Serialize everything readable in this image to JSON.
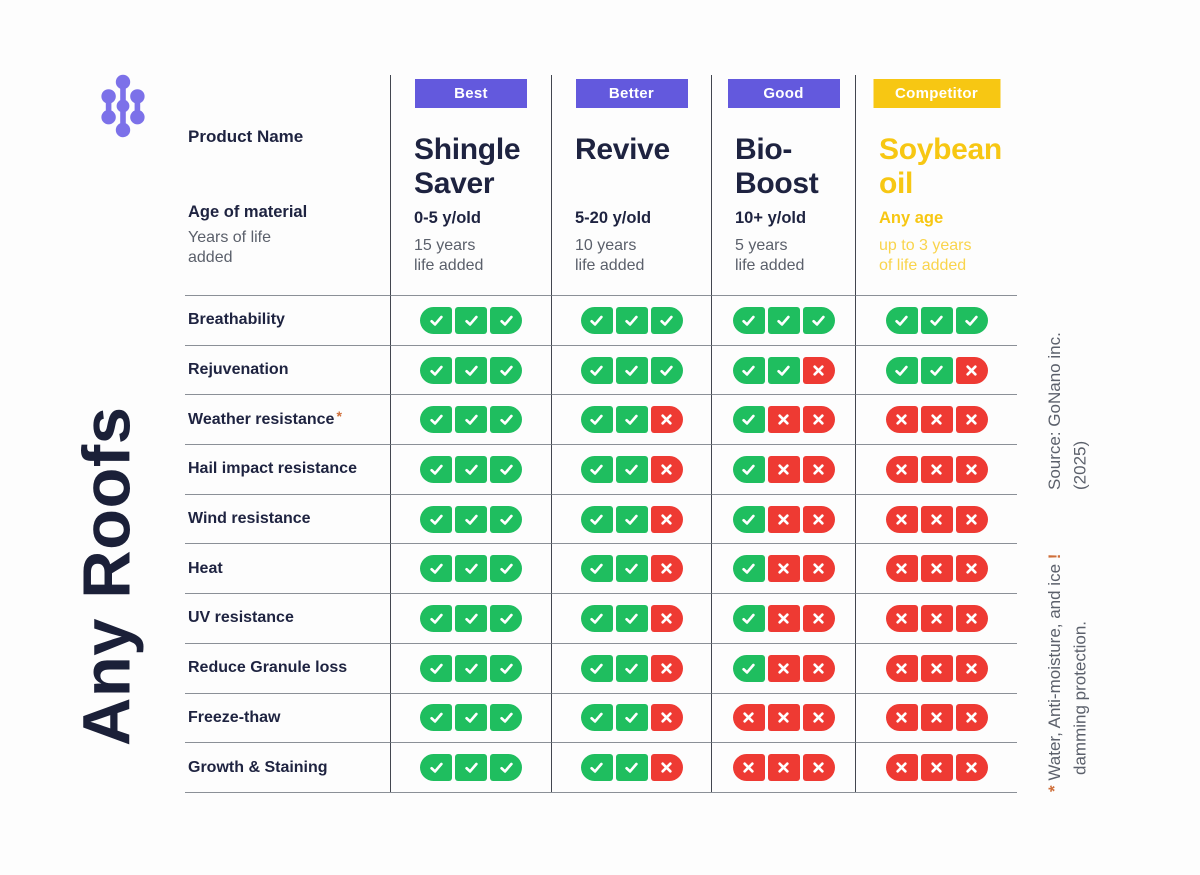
{
  "brand": {
    "vertical_title": "Any Roofs",
    "logo": "molecule-icon"
  },
  "header": {
    "product_name_label": "Product Name",
    "age_label": "Age of material",
    "years_label": "Years of life\nadded"
  },
  "columns": [
    {
      "id": "shingle-saver",
      "badge": "Best",
      "name": "Shingle\nSaver",
      "age": "0-5 y/old",
      "life": "15 years\nlife added",
      "theme": "default"
    },
    {
      "id": "revive",
      "badge": "Better",
      "name": "Revive",
      "age": "5-20 y/old",
      "life": "10 years\nlife added",
      "theme": "default"
    },
    {
      "id": "bio-boost",
      "badge": "Good",
      "name": "Bio-\nBoost",
      "age": "10+ y/old",
      "life": "5 years\nlife added",
      "theme": "default"
    },
    {
      "id": "soybean-oil",
      "badge": "Competitor",
      "name": "Soybean\noil",
      "age": "Any age",
      "life": "up to 3 years\nof life added",
      "theme": "competitor"
    }
  ],
  "rows": [
    {
      "label": "Breathability",
      "asterisk": false,
      "marks": [
        "CCC",
        "CCC",
        "CCC",
        "CCC"
      ]
    },
    {
      "label": "Rejuvenation",
      "asterisk": false,
      "marks": [
        "CCC",
        "CCC",
        "CCX",
        "CCX"
      ]
    },
    {
      "label": "Weather resistance",
      "asterisk": true,
      "marks": [
        "CCC",
        "CCX",
        "CXX",
        "XXX"
      ]
    },
    {
      "label": "Hail impact resistance",
      "asterisk": false,
      "marks": [
        "CCC",
        "CCX",
        "CXX",
        "XXX"
      ]
    },
    {
      "label": "Wind resistance",
      "asterisk": false,
      "marks": [
        "CCC",
        "CCX",
        "CXX",
        "XXX"
      ]
    },
    {
      "label": "Heat",
      "asterisk": false,
      "marks": [
        "CCC",
        "CCX",
        "CXX",
        "XXX"
      ]
    },
    {
      "label": "UV resistance",
      "asterisk": false,
      "marks": [
        "CCC",
        "CCX",
        "CXX",
        "XXX"
      ]
    },
    {
      "label": "Reduce Granule loss",
      "asterisk": false,
      "marks": [
        "CCC",
        "CCX",
        "CXX",
        "XXX"
      ]
    },
    {
      "label": "Freeze-thaw",
      "asterisk": false,
      "marks": [
        "CCC",
        "CCX",
        "XXX",
        "XXX"
      ]
    },
    {
      "label": "Growth & Staining",
      "asterisk": false,
      "marks": [
        "CCC",
        "CCX",
        "XXX",
        "XXX"
      ]
    }
  ],
  "footnote": {
    "star": "*",
    "line1": "Water, Anti-moisture, and ice",
    "bang": "!",
    "line2": "damming protection."
  },
  "source": "Source: GoNano inc.\n(2025)",
  "colors": {
    "navy": "#1E2340",
    "title_navy": "#1B2038",
    "purple": "#6359DD",
    "logo_purple": "#7C71E9",
    "yellow": "#F7C713",
    "yellow_light": "#F9D44C",
    "green": "#1FBE5F",
    "red": "#EE3A33",
    "gray_text": "#5B606B",
    "line_gray": "#8B9097",
    "line_dark": "#42464F",
    "orange": "#CF6F3A",
    "background": "#FDFDFD"
  },
  "chart_data": {
    "type": "table",
    "title": "Any Roofs — roof treatment product comparison",
    "legend": {
      "check": "pass",
      "x": "fail",
      "cell_scale": "3 segments per cell"
    },
    "columns": [
      "Shingle Saver",
      "Revive",
      "Bio-Boost",
      "Soybean oil"
    ],
    "column_tiers": [
      "Best",
      "Better",
      "Good",
      "Competitor"
    ],
    "column_age_of_material": [
      "0-5 y/old",
      "5-20 y/old",
      "10+ y/old",
      "Any age"
    ],
    "column_years_life_added": [
      "15 years life added",
      "10 years life added",
      "5 years life added",
      "up to 3 years of life added"
    ],
    "rows": [
      "Breathability",
      "Rejuvenation",
      "Weather resistance",
      "Hail impact resistance",
      "Wind resistance",
      "Heat",
      "UV resistance",
      "Reduce Granule loss",
      "Freeze-thaw",
      "Growth & Staining"
    ],
    "values": [
      [
        "✓✓✓",
        "✓✓✓",
        "✓✓✓",
        "✓✓✓"
      ],
      [
        "✓✓✓",
        "✓✓✓",
        "✓✓✗",
        "✓✓✗"
      ],
      [
        "✓✓✓",
        "✓✓✗",
        "✓✗✗",
        "✗✗✗"
      ],
      [
        "✓✓✓",
        "✓✓✗",
        "✓✗✗",
        "✗✗✗"
      ],
      [
        "✓✓✓",
        "✓✓✗",
        "✓✗✗",
        "✗✗✗"
      ],
      [
        "✓✓✓",
        "✓✓✗",
        "✓✗✗",
        "✗✗✗"
      ],
      [
        "✓✓✓",
        "✓✓✗",
        "✓✗✗",
        "✗✗✗"
      ],
      [
        "✓✓✓",
        "✓✓✗",
        "✓✗✗",
        "✗✗✗"
      ],
      [
        "✓✓✓",
        "✓✓✗",
        "✗✗✗",
        "✗✗✗"
      ],
      [
        "✓✓✓",
        "✓✓✗",
        "✗✗✗",
        "✗✗✗"
      ]
    ],
    "footnote": "* Water, Anti-moisture, and ice damming protection. !",
    "source": "Source: GoNano inc. (2025)"
  }
}
